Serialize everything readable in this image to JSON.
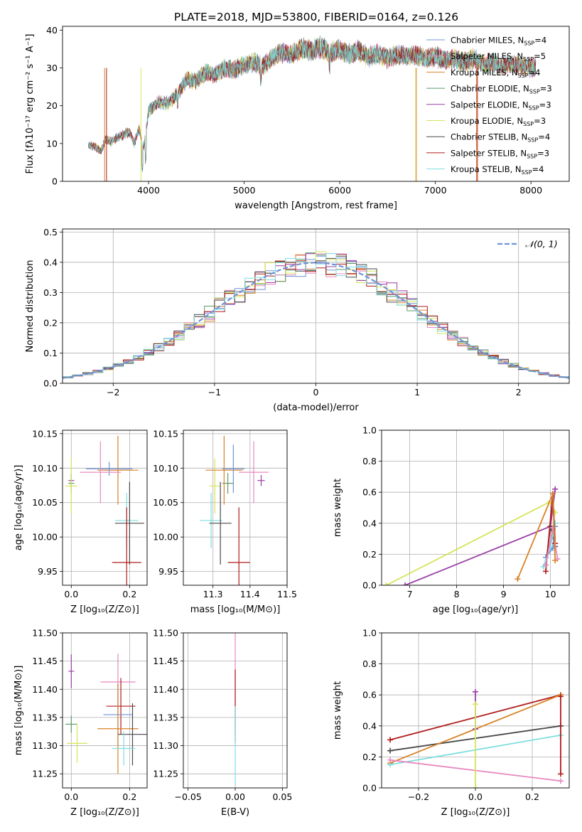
{
  "figure": {
    "title": "PLATE=2018, MJD=53800, FIBERID=0164, z=0.126"
  },
  "chart_data": [
    {
      "id": "spectrum",
      "type": "line",
      "xlabel": "wavelength [Angstrom, rest frame]",
      "ylabel": "Flux [fλ10⁻¹⁷ erg cm⁻² s⁻¹ A⁻¹]",
      "xlim": [
        3100,
        8400
      ],
      "ylim": [
        0,
        41
      ],
      "xticks": [
        "4000",
        "5000",
        "6000",
        "7000",
        "8000"
      ],
      "yticks": [
        "0",
        "10",
        "20",
        "30",
        "40"
      ],
      "grid": false,
      "legend_position": "top-right",
      "envelope": {
        "x": [
          3400,
          3450,
          3500,
          3550,
          3600,
          3700,
          3800,
          3850,
          3900,
          3950,
          4000,
          4100,
          4200,
          4300,
          4400,
          4500,
          4600,
          4700,
          4800,
          4900,
          5000,
          5100,
          5200,
          5300,
          5400,
          5500,
          5600,
          5700,
          5800,
          5900,
          6000,
          6100,
          6200,
          6300,
          6400,
          6500,
          6600,
          6700,
          6800,
          6900,
          7000,
          7100,
          7200,
          7300,
          7400,
          7500,
          7600,
          7700,
          7800,
          7900,
          8000,
          8050
        ],
        "y": [
          9.5,
          9.0,
          8.0,
          11.0,
          10.5,
          12.0,
          13.0,
          10.0,
          14.0,
          9.0,
          18.5,
          21.0,
          20.5,
          23.0,
          27.0,
          26.5,
          29.0,
          28.0,
          30.0,
          29.5,
          31.0,
          31.5,
          30.5,
          33.0,
          34.0,
          33.5,
          35.0,
          34.5,
          35.5,
          34.0,
          35.0,
          33.5,
          34.5,
          33.0,
          33.5,
          32.5,
          33.5,
          33.0,
          33.5,
          32.5,
          33.0,
          32.0,
          32.5,
          31.5,
          32.5,
          31.0,
          31.5,
          30.5,
          31.0,
          30.5,
          30.0,
          30.0
        ]
      },
      "series": [
        {
          "name": "Chabrier MILES, N_SSP=4",
          "color": "#6f93d6"
        },
        {
          "name": "Salpeter MILES, N_SSP=5",
          "color": "#e889bf"
        },
        {
          "name": "Kroupa MILES, N_SSP=4",
          "color": "#d98226"
        },
        {
          "name": "Chabrier ELODIE, N_SSP=3",
          "color": "#5c9a6a"
        },
        {
          "name": "Salpeter ELODIE, N_SSP=3",
          "color": "#9a3fa6"
        },
        {
          "name": "Kroupa ELODIE, N_SSP=3",
          "color": "#d6e45a"
        },
        {
          "name": "Chabrier STELIB, N_SSP=4",
          "color": "#4a4a4a"
        },
        {
          "name": "Salpeter STELIB, N_SSP=3",
          "color": "#b01c1c"
        },
        {
          "name": "Kroupa STELIB, N_SSP=4",
          "color": "#7fdede"
        }
      ]
    },
    {
      "id": "residuals",
      "type": "line",
      "xlabel": "(data-model)/error",
      "ylabel": "Normed distribution",
      "xlim": [
        -2.5,
        2.5
      ],
      "ylim": [
        0,
        0.51
      ],
      "xticks": [
        "−2",
        "−1",
        "0",
        "1",
        "2"
      ],
      "yticks": [
        "0.0",
        "0.1",
        "0.2",
        "0.3",
        "0.4",
        "0.5"
      ],
      "grid": true,
      "legend_position": "top-right",
      "reference_curve": {
        "name": "𝒩(0, 1)",
        "color": "#6f93d6",
        "mean": 0,
        "sigma": 1
      },
      "bin_width": 0.1
    },
    {
      "id": "age-vs-Z",
      "type": "scatter",
      "xlabel": "Z [log₁₀(Z/Z⊙)]",
      "ylabel": "age  [log₁₀(age/yr)]",
      "xlim": [
        -0.03,
        0.26
      ],
      "ylim": [
        9.93,
        10.155
      ],
      "xticks": [
        "0.0",
        "0.2"
      ],
      "yticks": [
        "9.95",
        "10.00",
        "10.05",
        "10.10",
        "10.15"
      ],
      "grid": true,
      "points": [
        {
          "x": 0.0,
          "y": 10.082,
          "xe": 0.01,
          "ye": 0.008,
          "color": "#9a3fa6"
        },
        {
          "x": 0.0,
          "y": 10.078,
          "xe": 0.01,
          "ye": 0.015,
          "color": "#5c9a6a"
        },
        {
          "x": 0.0,
          "y": 10.074,
          "xe": 0.02,
          "ye": 0.04,
          "color": "#d6e45a"
        },
        {
          "x": 0.16,
          "y": 10.097,
          "xe": 0.07,
          "ye": 0.05,
          "color": "#d98226"
        },
        {
          "x": 0.13,
          "y": 10.099,
          "xe": 0.08,
          "ye": 0.01,
          "color": "#6f93d6"
        },
        {
          "x": 0.1,
          "y": 10.094,
          "xe": 0.07,
          "ye": 0.045,
          "color": "#e889bf"
        },
        {
          "x": 0.19,
          "y": 10.024,
          "xe": 0.04,
          "ye": 0.04,
          "color": "#7fdede"
        },
        {
          "x": 0.2,
          "y": 10.02,
          "xe": 0.05,
          "ye": 0.06,
          "color": "#4a4a4a"
        },
        {
          "x": 0.19,
          "y": 9.963,
          "xe": 0.05,
          "ye": 0.08,
          "color": "#b01c1c"
        }
      ]
    },
    {
      "id": "age-vs-mass",
      "type": "scatter",
      "xlabel": "mass [log₁₀(M/M⊙)]",
      "ylabel": "",
      "xlim": [
        11.22,
        11.5
      ],
      "ylim": [
        9.93,
        10.155
      ],
      "xticks": [
        "11.3",
        "11.4",
        "11.5"
      ],
      "yticks": [
        "9.95",
        "10.00",
        "10.05",
        "10.10",
        "10.15"
      ],
      "grid": true,
      "points": [
        {
          "x": 11.43,
          "y": 10.082,
          "xe": 0.01,
          "ye": 0.008,
          "color": "#9a3fa6"
        },
        {
          "x": 11.305,
          "y": 10.074,
          "xe": 0.015,
          "ye": 0.04,
          "color": "#d6e45a"
        },
        {
          "x": 11.34,
          "y": 10.078,
          "xe": 0.015,
          "ye": 0.015,
          "color": "#5c9a6a"
        },
        {
          "x": 11.33,
          "y": 10.097,
          "xe": 0.05,
          "ye": 0.05,
          "color": "#d98226"
        },
        {
          "x": 11.355,
          "y": 10.099,
          "xe": 0.03,
          "ye": 0.035,
          "color": "#6f93d6"
        },
        {
          "x": 11.41,
          "y": 10.094,
          "xe": 0.04,
          "ye": 0.045,
          "color": "#e889bf"
        },
        {
          "x": 11.295,
          "y": 10.024,
          "xe": 0.03,
          "ye": 0.04,
          "color": "#7fdede"
        },
        {
          "x": 11.32,
          "y": 10.02,
          "xe": 0.03,
          "ye": 0.06,
          "color": "#4a4a4a"
        },
        {
          "x": 11.37,
          "y": 9.963,
          "xe": 0.03,
          "ye": 0.08,
          "color": "#b01c1c"
        }
      ]
    },
    {
      "id": "weight-vs-age",
      "type": "line",
      "xlabel": "age  [log₁₀(age/yr)]",
      "ylabel": "mass weight",
      "xlim": [
        6.4,
        10.4
      ],
      "ylim": [
        0,
        1
      ],
      "xticks": [
        "7",
        "8",
        "9",
        "10"
      ],
      "yticks": [
        "0.0",
        "0.2",
        "0.4",
        "0.6",
        "0.8",
        "1.0"
      ],
      "grid": true,
      "series": [
        {
          "color": "#d6e45a",
          "x": [
            6.5,
            10.0,
            10.1
          ],
          "y": [
            0.0,
            0.54,
            0.47
          ]
        },
        {
          "color": "#9a3fa6",
          "x": [
            6.9,
            10.0,
            10.1
          ],
          "y": [
            0.0,
            0.38,
            0.62
          ]
        },
        {
          "color": "#4a4a4a",
          "x": [
            9.9,
            10.0,
            10.1
          ],
          "y": [
            0.13,
            0.38,
            0.25
          ]
        },
        {
          "color": "#6f93d6",
          "x": [
            9.9,
            10.05,
            10.1
          ],
          "y": [
            0.18,
            0.24,
            0.38
          ]
        },
        {
          "color": "#7fdede",
          "x": [
            9.85,
            10.0,
            10.1
          ],
          "y": [
            0.12,
            0.25,
            0.4
          ]
        },
        {
          "color": "#b01c1c",
          "x": [
            9.9,
            10.05,
            10.1
          ],
          "y": [
            0.09,
            0.59,
            0.27
          ]
        },
        {
          "color": "#e889bf",
          "x": [
            9.9,
            10.05,
            10.15
          ],
          "y": [
            0.13,
            0.37,
            0.17
          ]
        },
        {
          "color": "#d98226",
          "x": [
            9.3,
            10.05,
            10.1
          ],
          "y": [
            0.04,
            0.59,
            0.16
          ]
        }
      ]
    },
    {
      "id": "mass-vs-Z",
      "type": "scatter",
      "xlabel": "Z [log₁₀(Z/Z⊙)]",
      "ylabel": "mass [log₁₀(M/M⊙)]",
      "xlim": [
        -0.03,
        0.26
      ],
      "ylim": [
        11.225,
        11.5
      ],
      "xticks": [
        "0.0",
        "0.2"
      ],
      "yticks": [
        "11.25",
        "11.30",
        "11.35",
        "11.40",
        "11.45",
        "11.50"
      ],
      "grid": true,
      "points": [
        {
          "x": 0.0,
          "y": 11.432,
          "xe": 0.01,
          "ye": 0.03,
          "color": "#9a3fa6"
        },
        {
          "x": 0.0,
          "y": 11.338,
          "xe": 0.02,
          "ye": 0.015,
          "color": "#5c9a6a"
        },
        {
          "x": 0.02,
          "y": 11.304,
          "xe": 0.035,
          "ye": 0.035,
          "color": "#d6e45a"
        },
        {
          "x": 0.16,
          "y": 11.413,
          "xe": 0.06,
          "ye": 0.05,
          "color": "#e889bf"
        },
        {
          "x": 0.17,
          "y": 11.37,
          "xe": 0.05,
          "ye": 0.05,
          "color": "#b01c1c"
        },
        {
          "x": 0.16,
          "y": 11.355,
          "xe": 0.05,
          "ye": 0.055,
          "color": "#6f93d6"
        },
        {
          "x": 0.16,
          "y": 11.33,
          "xe": 0.07,
          "ye": 0.08,
          "color": "#d98226"
        },
        {
          "x": 0.21,
          "y": 11.32,
          "xe": 0.05,
          "ye": 0.055,
          "color": "#4a4a4a"
        },
        {
          "x": 0.18,
          "y": 11.295,
          "xe": 0.04,
          "ye": 0.03,
          "color": "#7fdede"
        }
      ]
    },
    {
      "id": "mass-vs-EBV",
      "type": "scatter",
      "xlabel": "E(B-V)",
      "ylabel": "",
      "xlim": [
        -0.055,
        0.055
      ],
      "ylim": [
        11.225,
        11.5
      ],
      "xticks": [
        "−0.05",
        "0.00",
        "0.05"
      ],
      "yticks": [
        "11.25",
        "11.30",
        "11.35",
        "11.40",
        "11.45",
        "11.50"
      ],
      "grid": true,
      "points": [
        {
          "x": 0.0,
          "y": 11.41,
          "xe": 0.0,
          "ye": 0.09,
          "color": "#e889bf"
        },
        {
          "x": 0.0,
          "y": 11.37,
          "xe": 0.0,
          "ye": 0.065,
          "color": "#b01c1c"
        },
        {
          "x": 0.0,
          "y": 11.3,
          "xe": 0.0,
          "ye": 0.07,
          "color": "#7fdede"
        }
      ]
    },
    {
      "id": "weight-vs-Z",
      "type": "line",
      "xlabel": "Z [log₁₀(Z/Z⊙)]",
      "ylabel": "mass weight",
      "xlim": [
        -0.33,
        0.33
      ],
      "ylim": [
        0,
        1
      ],
      "xticks": [
        "−0.2",
        "0.0",
        "0.2"
      ],
      "yticks": [
        "0.0",
        "0.2",
        "0.4",
        "0.6",
        "0.8",
        "1.0"
      ],
      "grid": true,
      "series": [
        {
          "color": "#b01c1c",
          "x": [
            -0.3,
            0.3
          ],
          "y": [
            0.31,
            0.6
          ]
        },
        {
          "color": "#4a4a4a",
          "x": [
            -0.3,
            0.3
          ],
          "y": [
            0.24,
            0.4
          ]
        },
        {
          "color": "#d98226",
          "x": [
            -0.3,
            0.3
          ],
          "y": [
            0.16,
            0.6
          ]
        },
        {
          "color": "#7fdede",
          "x": [
            -0.3,
            0.3
          ],
          "y": [
            0.15,
            0.34
          ]
        },
        {
          "color": "#e889bf",
          "x": [
            -0.3,
            0.3
          ],
          "y": [
            0.18,
            0.045
          ]
        },
        {
          "color": "#9a3fa6",
          "x": [
            0.0,
            0.0
          ],
          "y": [
            0.38,
            0.62
          ]
        },
        {
          "color": "#d6e45a",
          "x": [
            0.0,
            0.0
          ],
          "y": [
            0.0,
            0.54
          ]
        },
        {
          "color": "#b01c1c",
          "x": [
            0.3,
            0.3
          ],
          "y": [
            0.09,
            0.59
          ]
        }
      ]
    }
  ]
}
